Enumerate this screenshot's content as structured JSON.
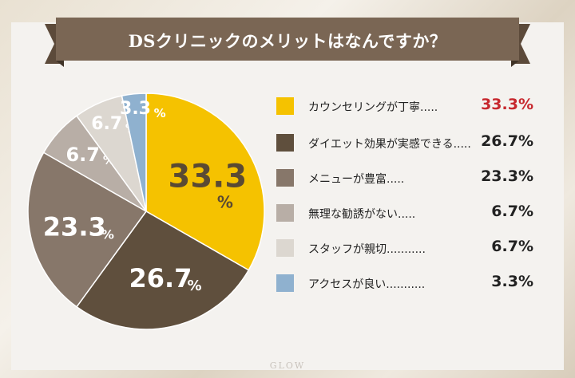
{
  "chart_data": {
    "type": "pie",
    "title": "DSクリニックのメリットはなんですか？",
    "start_angle_deg": 0,
    "direction": "clockwise",
    "slices": [
      {
        "label": "カウンセリングが丁寧.....",
        "value": 33.3,
        "display": "33.3%",
        "color": "#f5c200",
        "text_color": "#5a4a33",
        "value_color": "#c7282e"
      },
      {
        "label": "ダイエット効果が実感できる.....",
        "value": 26.7,
        "display": "26.7%",
        "color": "#5f4f3d",
        "text_color": "#ffffff",
        "value_color": "#222222"
      },
      {
        "label": "メニューが豊富.....",
        "value": 23.3,
        "display": "23.3%",
        "color": "#87776a",
        "text_color": "#ffffff",
        "value_color": "#222222"
      },
      {
        "label": "無理な勧誘がない.....",
        "value": 6.7,
        "display": "6.7%",
        "color": "#b8aea6",
        "text_color": "#ffffff",
        "value_color": "#222222"
      },
      {
        "label": "スタッフが親切...........",
        "value": 6.7,
        "display": "6.7%",
        "color": "#dcd7d0",
        "text_color": "#ffffff",
        "value_color": "#222222"
      },
      {
        "label": "アクセスが良い...........",
        "value": 3.3,
        "display": "3.3%",
        "color": "#8fb1cf",
        "text_color": "#ffffff",
        "value_color": "#222222"
      }
    ]
  },
  "brand": {
    "banner_color": "#7a6654",
    "banner_shadow": "#5c4a3a",
    "watermark": "GLOW"
  }
}
